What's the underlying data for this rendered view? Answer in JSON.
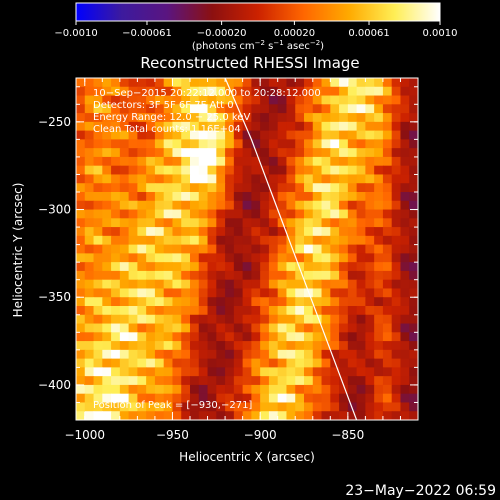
{
  "chart_data": {
    "type": "heatmap",
    "title": "Reconstructed RHESSI Image",
    "xlabel": "Heliocentric X (arcsec)",
    "ylabel": "Heliocentric Y (arcsec)",
    "xlim": [
      -1005,
      -810
    ],
    "ylim": [
      -420,
      -225
    ],
    "x_ticks": [
      -1000,
      -950,
      -900,
      -850
    ],
    "x_tick_labels": [
      "−1000",
      "−950",
      "−900",
      "−850"
    ],
    "y_ticks": [
      -250,
      -300,
      -350,
      -400
    ],
    "y_tick_labels": [
      "−250",
      "−300",
      "−350",
      "−400"
    ],
    "colorbar": {
      "min": -0.001,
      "max": 0.001,
      "ticks": [
        -0.001,
        -0.00061,
        -0.0002,
        0.0002,
        0.00061,
        0.001
      ],
      "tick_labels": [
        "−0.0010",
        "−0.00061",
        "−0.00020",
        "0.00020",
        "0.00061",
        "0.0010"
      ],
      "unit_label_parts": [
        "(photons cm",
        "−2",
        " s",
        "−1",
        " asec",
        "−2",
        ")"
      ],
      "colormap": [
        "#0000ff",
        "#3c1a9e",
        "#5a1580",
        "#8c1010",
        "#cc2200",
        "#ff6600",
        "#ffaa00",
        "#ffee55",
        "#ffffff"
      ]
    },
    "annotations": [
      "10−Sep−2015 20:22:12.000 to 20:28:12.000",
      "Detectors: 3F 5F 6F 7F Att 0",
      "Energy Range: 12.0 − 25.0 keV",
      "Clean    Total counts: 1.16E+04"
    ],
    "peak_label": "Position of Peak = [−930,−271]",
    "peak": [
      -930,
      -271
    ],
    "limb_curve": [
      [
        -920,
        -225
      ],
      [
        -905,
        -260
      ],
      [
        -890,
        -300
      ],
      [
        -875,
        -340
      ],
      [
        -860,
        -380
      ],
      [
        -845,
        -420
      ]
    ]
  },
  "timestamp": "23−May−2022 06:59"
}
